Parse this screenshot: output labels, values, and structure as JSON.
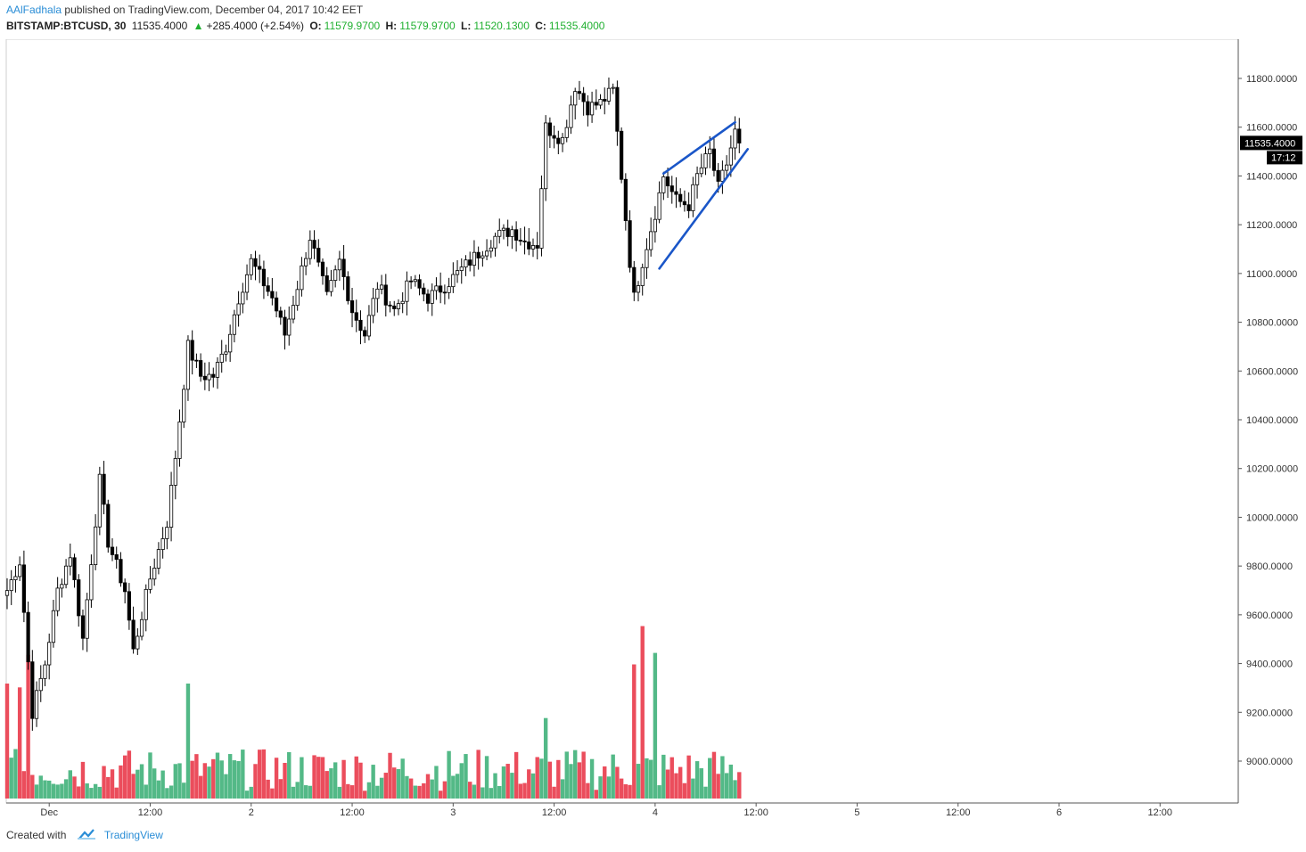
{
  "header": {
    "author": "AAlFadhala",
    "published_text": "published on TradingView.com, December 04, 2017 10:42 EET",
    "symbol": "BITSTAMP:BTCUSD, 30",
    "last": "11535.4000",
    "change_arrow": "▲",
    "change": "+285.4000 (+2.54%)",
    "o_label": "O:",
    "o_value": "11579.9700",
    "h_label": "H:",
    "h_value": "11579.9700",
    "l_label": "L:",
    "l_value": "11520.1300",
    "c_label": "C:",
    "c_value": "11535.4000"
  },
  "footer": {
    "created_with": "Created with",
    "brand": "TradingView",
    "logo_icon": "tradingview-cloud-icon"
  },
  "colors": {
    "up": "#26a69a",
    "vol_up": "#53b987",
    "vol_down": "#eb4d5c",
    "candle": "#000000",
    "trendline": "#1a56c8",
    "price_tag_bg": "#000000"
  },
  "chart_data": {
    "type": "candlestick",
    "timeframe": "30",
    "x_tick_labels": [
      "Dec",
      "12:00",
      "2",
      "12:00",
      "3",
      "12:00",
      "4",
      "12:00",
      "5",
      "12:00",
      "6",
      "12:00"
    ],
    "y_tick_labels": [
      "11800.0000",
      "11600.0000",
      "11400.0000",
      "11200.0000",
      "11000.0000",
      "10800.0000",
      "10600.0000",
      "10400.0000",
      "10200.0000",
      "10000.0000",
      "9800.0000",
      "9600.0000",
      "9400.0000",
      "9200.0000",
      "9000.0000"
    ],
    "ylim": [
      8870,
      11900
    ],
    "x_start": "2017-11-30 19:00",
    "x_end": "2017-12-06 12:30",
    "last_price_label": "11535.4000",
    "countdown_label": "17:12",
    "anchors": [
      [
        "2017-11-30 19:00",
        9700
      ],
      [
        "2017-11-30 20:30",
        9820
      ],
      [
        "2017-11-30 22:00",
        9200
      ],
      [
        "2017-11-30 23:30",
        9400
      ],
      [
        "2017-12-01 01:00",
        9700
      ],
      [
        "2017-12-01 02:30",
        9850
      ],
      [
        "2017-12-01 04:00",
        9500
      ],
      [
        "2017-12-01 06:00",
        10150
      ],
      [
        "2017-12-01 07:00",
        9900
      ],
      [
        "2017-12-01 09:00",
        9700
      ],
      [
        "2017-12-01 10:00",
        9450
      ],
      [
        "2017-12-01 12:00",
        9750
      ],
      [
        "2017-12-01 14:00",
        9980
      ],
      [
        "2017-12-01 15:00",
        10250
      ],
      [
        "2017-12-01 16:30",
        10700
      ],
      [
        "2017-12-01 18:00",
        10580
      ],
      [
        "2017-12-01 19:30",
        10580
      ],
      [
        "2017-12-01 21:00",
        10700
      ],
      [
        "2017-12-01 22:30",
        10900
      ],
      [
        "2017-12-02 00:00",
        11050
      ],
      [
        "2017-12-02 02:30",
        10900
      ],
      [
        "2017-12-02 04:00",
        10750
      ],
      [
        "2017-12-02 05:30",
        10950
      ],
      [
        "2017-12-02 07:00",
        11150
      ],
      [
        "2017-12-02 09:00",
        10900
      ],
      [
        "2017-12-02 10:30",
        11050
      ],
      [
        "2017-12-02 12:00",
        10850
      ],
      [
        "2017-12-02 13:30",
        10750
      ],
      [
        "2017-12-02 15:00",
        10950
      ],
      [
        "2017-12-02 17:00",
        10850
      ],
      [
        "2017-12-02 19:00",
        10970
      ],
      [
        "2017-12-02 21:00",
        10900
      ],
      [
        "2017-12-02 23:00",
        10950
      ],
      [
        "2017-12-03 02:00",
        11050
      ],
      [
        "2017-12-03 05:00",
        11150
      ],
      [
        "2017-12-03 07:00",
        11180
      ],
      [
        "2017-12-03 08:30",
        11130
      ],
      [
        "2017-12-03 10:00",
        11120
      ],
      [
        "2017-12-03 11:00",
        11600
      ],
      [
        "2017-12-03 13:00",
        11550
      ],
      [
        "2017-12-03 14:30",
        11770
      ],
      [
        "2017-12-03 16:00",
        11680
      ],
      [
        "2017-12-03 17:30",
        11700
      ],
      [
        "2017-12-03 19:00",
        11750
      ],
      [
        "2017-12-03 20:00",
        11400
      ],
      [
        "2017-12-03 21:00",
        11050
      ],
      [
        "2017-12-03 21:30",
        10900
      ],
      [
        "2017-12-03 22:30",
        11050
      ],
      [
        "2017-12-04 00:00",
        11250
      ],
      [
        "2017-12-04 01:00",
        11400
      ],
      [
        "2017-12-04 02:30",
        11300
      ],
      [
        "2017-12-04 04:00",
        11280
      ],
      [
        "2017-12-04 05:00",
        11400
      ],
      [
        "2017-12-04 06:30",
        11500
      ],
      [
        "2017-12-04 07:30",
        11350
      ],
      [
        "2017-12-04 08:30",
        11450
      ],
      [
        "2017-12-04 09:30",
        11580
      ],
      [
        "2017-12-04 10:00",
        11535
      ]
    ],
    "volume_scale_max": 100,
    "volume_spikes": [
      [
        "2017-11-30 19:00",
        60,
        "down"
      ],
      [
        "2017-11-30 20:30",
        58,
        "down"
      ],
      [
        "2017-11-30 21:30",
        75,
        "down"
      ],
      [
        "2017-12-01 16:30",
        60,
        "up"
      ],
      [
        "2017-12-03 11:00",
        42,
        "up"
      ],
      [
        "2017-12-03 21:30",
        70,
        "down"
      ],
      [
        "2017-12-03 22:30",
        90,
        "down"
      ],
      [
        "2017-12-04 00:00",
        76,
        "up"
      ]
    ],
    "trendlines": [
      {
        "from": [
          "2017-12-04 01:00",
          11410
        ],
        "to": [
          "2017-12-04 09:30",
          11620
        ]
      },
      {
        "from": [
          "2017-12-04 00:30",
          11020
        ],
        "to": [
          "2017-12-04 11:00",
          11510
        ]
      }
    ]
  }
}
